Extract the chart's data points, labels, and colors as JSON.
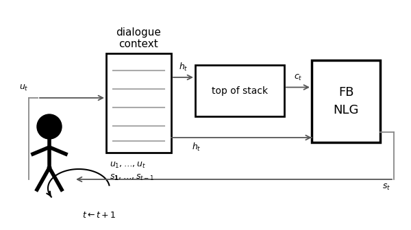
{
  "bg_color": "#ffffff",
  "text_color": "#000000",
  "box_color": "#000000",
  "line_color": "#888888",
  "arrow_color": "#555555",
  "title": "dialogue\ncontext",
  "label_ut": "$u_t$",
  "label_ht_top": "$h_t$",
  "label_ht_bot": "$h_t$",
  "label_ct": "$c_t$",
  "label_st": "$s_t$",
  "label_u1": "$u_1, \\ldots, u_t$",
  "label_s1": "$s_\\mathbf{1}, \\ldots, s_{t-1}$",
  "label_top_of_stack": "top of stack",
  "label_fb_nlg": "FB\nNLG",
  "label_t_update": "$t \\leftarrow t + 1$",
  "fig_width": 6.0,
  "fig_height": 3.36
}
